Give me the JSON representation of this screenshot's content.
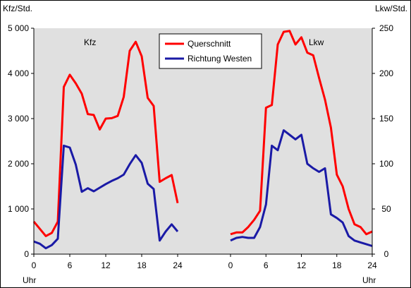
{
  "chart_data": {
    "type": "line",
    "colors": {
      "plot_background": "#e0e0e0",
      "querschnitt": "#ff0000",
      "richtung_westen": "#1a1aa6"
    },
    "left_axis": {
      "label": "Kfz/Std.",
      "ylim": [
        0,
        5000
      ],
      "ticks": [
        0,
        1000,
        2000,
        3000,
        4000,
        5000
      ],
      "tick_labels": [
        "0",
        "1 000",
        "2 000",
        "3 000",
        "4 000",
        "5 000"
      ]
    },
    "right_axis": {
      "label": "Lkw/Std.",
      "ylim": [
        0,
        250
      ],
      "ticks": [
        0,
        50,
        100,
        150,
        200,
        250
      ],
      "tick_labels": [
        "0",
        "50",
        "100",
        "150",
        "200",
        "250"
      ]
    },
    "x_axis": {
      "unit_label": "Uhr",
      "ticks": [
        0,
        6,
        12,
        18,
        24
      ]
    },
    "legend": {
      "placement": "top-center",
      "entries": [
        {
          "name": "Querschnitt",
          "color": "#ff0000"
        },
        {
          "name": "Richtung Westen",
          "color": "#1a1aa6"
        }
      ]
    },
    "panels": [
      {
        "label": "Kfz",
        "axis": "left",
        "series": [
          {
            "name": "Querschnitt",
            "color": "#ff0000",
            "x": [
              0,
              1,
              2,
              3,
              4,
              5,
              6,
              7,
              8,
              9,
              10,
              11,
              12,
              13,
              14,
              15,
              16,
              17,
              18,
              19,
              20,
              21,
              22,
              23,
              24
            ],
            "y": [
              720,
              560,
              400,
              470,
              720,
              3700,
              3970,
              3780,
              3550,
              3100,
              3080,
              2760,
              3000,
              3010,
              3060,
              3480,
              4500,
              4700,
              4380,
              3460,
              3280,
              1600,
              1680,
              1750,
              1130
            ]
          },
          {
            "name": "Richtung Westen",
            "color": "#1a1aa6",
            "x": [
              0,
              1,
              2,
              3,
              4,
              5,
              6,
              7,
              8,
              9,
              10,
              11,
              12,
              13,
              14,
              15,
              16,
              17,
              18,
              19,
              20,
              21,
              22,
              23,
              24
            ],
            "y": [
              280,
              230,
              130,
              200,
              340,
              2400,
              2360,
              1980,
              1380,
              1460,
              1390,
              1470,
              1550,
              1620,
              1680,
              1760,
              1990,
              2190,
              2020,
              1560,
              1440,
              300,
              500,
              660,
              500
            ]
          }
        ]
      },
      {
        "label": "Lkw",
        "axis": "right",
        "series": [
          {
            "name": "Querschnitt",
            "color": "#ff0000",
            "x": [
              0,
              1,
              2,
              3,
              4,
              5,
              6,
              7,
              8,
              9,
              10,
              11,
              12,
              13,
              14,
              15,
              16,
              17,
              18,
              19,
              20,
              21,
              22,
              23,
              24
            ],
            "y": [
              22,
              24,
              24,
              30,
              38,
              48,
              162,
              165,
              232,
              246,
              247,
              232,
              240,
              223,
              220,
              195,
              171,
              140,
              88,
              75,
              50,
              33,
              30,
              22,
              25
            ]
          },
          {
            "name": "Richtung Westen",
            "color": "#1a1aa6",
            "x": [
              0,
              1,
              2,
              3,
              4,
              5,
              6,
              7,
              8,
              9,
              10,
              11,
              12,
              13,
              14,
              15,
              16,
              17,
              18,
              19,
              20,
              21,
              22,
              23,
              24
            ],
            "y": [
              15,
              18,
              19,
              18,
              18,
              30,
              55,
              120,
              115,
              137,
              132,
              127,
              132,
              100,
              95,
              91,
              95,
              44,
              40,
              35,
              20,
              15,
              13,
              11,
              9
            ]
          }
        ]
      }
    ]
  }
}
